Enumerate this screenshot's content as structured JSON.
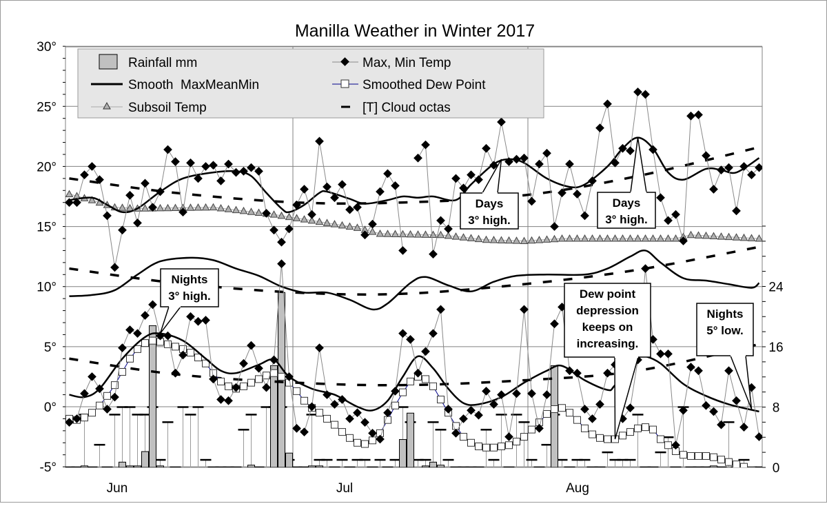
{
  "chart_data": {
    "type": "line",
    "title": "Manilla Weather in Winter 2017",
    "x_axis": {
      "month_labels": [
        "Jun",
        "Jul",
        "Aug"
      ],
      "range": [
        "Jun 1",
        "Aug 31"
      ]
    },
    "y_axis_left": {
      "unit": "°C",
      "range": [
        -5,
        30
      ],
      "tick_labels": [
        "30°",
        "25°",
        "20°",
        "15°",
        "10°",
        "5°",
        "0°",
        "-5°"
      ]
    },
    "y_axis_right": {
      "range": [
        0,
        32
      ],
      "tick_labels": [
        "24",
        "16",
        "8",
        "0"
      ]
    },
    "grid": "horizontal every 5°, vertical at month starts",
    "legend": {
      "placement": "top-left",
      "items": [
        "Rainfall mm",
        "Max, Min Temp",
        "Smooth  MaxMeanMin",
        "Smoothed Dew Point",
        "Subsoil Temp",
        "[T] Cloud octas"
      ]
    },
    "series": {
      "max_temp": {
        "name": "Max, Min Temp",
        "Jun": [
          17.0,
          17.0,
          19.3,
          20.0,
          18.9,
          15.9,
          11.6,
          14.7,
          17.6,
          15.3,
          18.6,
          16.6,
          17.9,
          21.4,
          20.4,
          16.2,
          20.3,
          19.0,
          20.0,
          20.1,
          18.8,
          20.2,
          19.5,
          19.6,
          19.9,
          19.6,
          16.1,
          14.7,
          13.7,
          14.8
        ],
        "Jul": [
          16.8,
          18.1,
          16.0,
          22.1,
          18.3,
          17.4,
          18.5,
          16.4,
          16.6,
          14.3,
          15.2,
          17.9,
          19.4,
          18.4,
          13.0,
          null,
          20.7,
          21.8,
          12.7,
          15.5,
          14.8,
          19.0,
          18.2,
          19.3,
          18.9,
          21.5,
          20.1,
          23.7,
          20.4,
          20.6,
          20.7
        ],
        "Aug": [
          17.1,
          20.2,
          21.1,
          15.0,
          17.8,
          20.2,
          17.7,
          15.9,
          18.8,
          23.2,
          25.2,
          20.3,
          21.5,
          21.3,
          26.2,
          26.0,
          21.4,
          17.4,
          15.5,
          16.0,
          13.8,
          24.2,
          24.3,
          20.9,
          18.1,
          19.7,
          19.9,
          16.3,
          20.0,
          19.3,
          19.9
        ]
      },
      "min_temp": {
        "name": "Max, Min Temp",
        "Jun": [
          -1.3,
          -1.0,
          1.1,
          2.5,
          1.5,
          -0.2,
          0.8,
          4.9,
          6.4,
          6.1,
          7.6,
          8.5,
          5.9,
          5.9,
          2.8,
          4.3,
          7.5,
          7.1,
          7.2,
          2.3,
          0.6,
          0.5,
          1.6,
          3.6,
          5.1,
          3.2,
          1.6,
          3.9,
          11.9,
          2.5
        ],
        "Jul": [
          -1.8,
          -2.1,
          0.0,
          4.9,
          1.0,
          0.2,
          0.6,
          -1.0,
          -0.5,
          -1.3,
          -2.2,
          -2.7,
          -0.5,
          1.3,
          6.1,
          5.6,
          2.8,
          4.6,
          6.1,
          8.1,
          -0.2,
          -2.2,
          -1.0,
          -0.3,
          -0.7,
          1.3,
          0.2,
          1.0,
          -2.5,
          1.1,
          8.1
        ],
        "Aug": [
          1.1,
          -1.8,
          1.0,
          6.9,
          8.3,
          3.0,
          2.8,
          -0.2,
          -1.0,
          0.2,
          2.8,
          3.5,
          -1.0,
          -0.1,
          3.9,
          11.5,
          5.6,
          4.4,
          4.4,
          -3.2,
          -0.3,
          3.3,
          3.0,
          0.1,
          -0.4,
          -1.5,
          3.0,
          0.5,
          -1.7,
          1.6,
          -2.5
        ]
      },
      "dew_point": {
        "name": "Smoothed Dew Point",
        "Jun": [
          -1.0,
          -1.1,
          -0.9,
          -0.5,
          0.1,
          0.9,
          1.8,
          2.9,
          4.0,
          4.8,
          5.3,
          5.5,
          5.4,
          5.2,
          5.0,
          4.8,
          4.5,
          4.1,
          3.6,
          2.8,
          2.1,
          1.7,
          1.5,
          1.7,
          2.0,
          2.3,
          2.6,
          2.8,
          2.5,
          2.0
        ],
        "Jul": [
          1.3,
          0.5,
          -0.1,
          -0.5,
          -1.0,
          -1.5,
          -2.1,
          -2.6,
          -3.0,
          -3.1,
          -2.8,
          -2.2,
          -1.1,
          0.1,
          1.2,
          2.1,
          2.5,
          2.3,
          1.7,
          0.6,
          -0.5,
          -1.6,
          -2.5,
          -3.0,
          -3.3,
          -3.4,
          -3.4,
          -3.3,
          -3.2,
          -2.9,
          -2.5
        ],
        "Aug": [
          -1.9,
          -1.3,
          -0.6,
          -0.2,
          -0.1,
          -0.5,
          -1.1,
          -1.8,
          -2.3,
          -2.6,
          -2.7,
          -2.7,
          -2.4,
          -2.1,
          -1.8,
          -1.7,
          -1.9,
          -2.7,
          -3.2,
          -3.7,
          -4.0,
          -4.1,
          -4.1,
          -4.1,
          -4.2,
          -4.4,
          -4.6,
          -4.8,
          -5.0,
          -5.3,
          -5.6
        ]
      },
      "smooth_max": [
        [
          "Jun 1",
          17.2
        ],
        [
          "Jun 4",
          17.4
        ],
        [
          "Jun 6",
          16.8
        ],
        [
          "Jun 8",
          16.2
        ],
        [
          "Jun 10",
          16.5
        ],
        [
          "Jun 13",
          17.9
        ],
        [
          "Jun 16",
          19.0
        ],
        [
          "Jun 20",
          19.5
        ],
        [
          "Jun 23",
          19.6
        ],
        [
          "Jun 25",
          19.2
        ],
        [
          "Jun 27",
          17.8
        ],
        [
          "Jun 29",
          16.5
        ],
        [
          "Jun 30",
          16.2
        ],
        [
          "Jul 2",
          16.8
        ],
        [
          "Jul 4",
          17.8
        ],
        [
          "Jul 5",
          17.9
        ],
        [
          "Jul 8",
          17.3
        ],
        [
          "Jul 10",
          16.9
        ],
        [
          "Jul 13",
          17.2
        ],
        [
          "Jul 15",
          17.5
        ],
        [
          "Jul 17",
          17.4
        ],
        [
          "Jul 19",
          17.5
        ],
        [
          "Jul 22",
          17.2
        ],
        [
          "Jul 24",
          18.5
        ],
        [
          "Jul 27",
          20.2
        ],
        [
          "Jul 29",
          20.6
        ],
        [
          "Jul 31",
          20.3
        ],
        [
          "Aug 3",
          19.0
        ],
        [
          "Aug 6",
          18.3
        ],
        [
          "Aug 8",
          18.5
        ],
        [
          "Aug 11",
          20.0
        ],
        [
          "Aug 13",
          21.5
        ],
        [
          "Aug 15",
          22.4
        ],
        [
          "Aug 17",
          21.5
        ],
        [
          "Aug 19",
          19.5
        ],
        [
          "Aug 21",
          18.9
        ],
        [
          "Aug 24",
          19.8
        ],
        [
          "Aug 26",
          19.7
        ],
        [
          "Aug 28",
          19.5
        ],
        [
          "Aug 31",
          20.7
        ]
      ],
      "smooth_mean": [
        [
          "Jun 1",
          9.2
        ],
        [
          "Jun 4",
          9.3
        ],
        [
          "Jun 7",
          9.7
        ],
        [
          "Jun 10",
          11.0
        ],
        [
          "Jun 13",
          12.1
        ],
        [
          "Jun 17",
          12.4
        ],
        [
          "Jun 20",
          12.2
        ],
        [
          "Jun 23",
          11.5
        ],
        [
          "Jun 26",
          10.9
        ],
        [
          "Jun 29",
          10.0
        ],
        [
          "Jul 2",
          9.5
        ],
        [
          "Jul 5",
          9.5
        ],
        [
          "Jul 8",
          8.9
        ],
        [
          "Jul 11",
          8.1
        ],
        [
          "Jul 13",
          8.6
        ],
        [
          "Jul 16",
          10.3
        ],
        [
          "Jul 18",
          10.8
        ],
        [
          "Jul 21",
          10.1
        ],
        [
          "Jul 24",
          9.6
        ],
        [
          "Jul 27",
          10.4
        ],
        [
          "Jul 30",
          10.9
        ],
        [
          "Aug 3",
          11.0
        ],
        [
          "Aug 8",
          11.0
        ],
        [
          "Aug 11",
          11.5
        ],
        [
          "Aug 14",
          12.5
        ],
        [
          "Aug 16",
          13.0
        ],
        [
          "Aug 18",
          12.0
        ],
        [
          "Aug 21",
          10.7
        ],
        [
          "Aug 24",
          10.5
        ],
        [
          "Aug 27",
          10.2
        ],
        [
          "Aug 30",
          9.9
        ],
        [
          "Aug 31",
          10.3
        ]
      ],
      "smooth_min": [
        [
          "Jun 1",
          1.0
        ],
        [
          "Jun 3",
          0.8
        ],
        [
          "Jun 5",
          1.5
        ],
        [
          "Jun 8",
          4.0
        ],
        [
          "Jun 11",
          5.8
        ],
        [
          "Jun 13",
          6.1
        ],
        [
          "Jun 16",
          5.5
        ],
        [
          "Jun 19",
          4.0
        ],
        [
          "Jun 21",
          3.0
        ],
        [
          "Jun 23",
          2.8
        ],
        [
          "Jun 26",
          3.5
        ],
        [
          "Jun 28",
          3.9
        ],
        [
          "Jun 30",
          2.5
        ],
        [
          "Jul 3",
          1.5
        ],
        [
          "Jul 6",
          1.0
        ],
        [
          "Jul 9",
          0.0
        ],
        [
          "Jul 11",
          -0.3
        ],
        [
          "Jul 13",
          0.5
        ],
        [
          "Jul 15",
          2.5
        ],
        [
          "Jul 17",
          4.2
        ],
        [
          "Jul 19",
          3.2
        ],
        [
          "Jul 21",
          1.5
        ],
        [
          "Jul 23",
          0.3
        ],
        [
          "Jul 25",
          0.2
        ],
        [
          "Jul 28",
          0.8
        ],
        [
          "Jul 31",
          2.0
        ],
        [
          "Aug 3",
          3.0
        ],
        [
          "Aug 5",
          3.4
        ],
        [
          "Aug 8",
          2.2
        ],
        [
          "Aug 11",
          1.4
        ],
        [
          "Aug 12",
          1.8
        ],
        [
          "Aug 15",
          4.1
        ],
        [
          "Aug 16",
          4.2
        ],
        [
          "Aug 18",
          3.6
        ],
        [
          "Aug 21",
          1.9
        ],
        [
          "Aug 24",
          0.9
        ],
        [
          "Aug 27",
          0.2
        ],
        [
          "Aug 31",
          -0.4
        ]
      ],
      "dashed_upper": [
        [
          "Jun 1",
          19.0
        ],
        [
          "Jun 15",
          17.8
        ],
        [
          "Jul 1",
          17.0
        ],
        [
          "Jul 15",
          17.0
        ],
        [
          "Jul 31",
          17.6
        ],
        [
          "Aug 15",
          19.2
        ],
        [
          "Aug 31",
          21.6
        ]
      ],
      "dashed_middle": [
        [
          "Jun 1",
          11.5
        ],
        [
          "Jun 15",
          10.3
        ],
        [
          "Jul 1",
          9.5
        ],
        [
          "Jul 15",
          9.4
        ],
        [
          "Jul 31",
          10.2
        ],
        [
          "Aug 15",
          11.4
        ],
        [
          "Aug 31",
          13.3
        ]
      ],
      "dashed_lower": [
        [
          "Jun 1",
          4.0
        ],
        [
          "Jun 15",
          2.7
        ],
        [
          "Jul 1",
          2.0
        ],
        [
          "Jul 15",
          1.8
        ],
        [
          "Jul 31",
          2.2
        ],
        [
          "Aug 15",
          3.0
        ],
        [
          "Aug 31",
          5.2
        ]
      ],
      "subsoil": {
        "name": "Subsoil Temp",
        "knots": [
          [
            "Jun 1",
            17.7
          ],
          [
            "Jun 4",
            17.2
          ],
          [
            "Jun 7",
            16.6
          ],
          [
            "Jun 10",
            16.5
          ],
          [
            "Jun 20",
            16.6
          ],
          [
            "Jun 28",
            16.0
          ],
          [
            "Jul 1",
            15.7
          ],
          [
            "Jul 5",
            15.3
          ],
          [
            "Jul 9",
            14.9
          ],
          [
            "Jul 12",
            14.4
          ],
          [
            "Jul 20",
            14.3
          ],
          [
            "Jul 26",
            13.9
          ],
          [
            "Jul 31",
            13.8
          ],
          [
            "Aug 5",
            14.0
          ],
          [
            "Aug 20",
            14.0
          ],
          [
            "Aug 22",
            14.3
          ],
          [
            "Aug 31",
            14.0
          ]
        ]
      },
      "rainfall_mm": {
        "name": "Rainfall mm",
        "values": [
          [
            "Jun 3",
            0.2
          ],
          [
            "Jun 8",
            0.7
          ],
          [
            "Jun 9",
            0.2
          ],
          [
            "Jun 10",
            0.2
          ],
          [
            "Jun 11",
            2.1
          ],
          [
            "Jun 12",
            18.8
          ],
          [
            "Jun 13",
            0.2
          ],
          [
            "Jun 25",
            0.3
          ],
          [
            "Jun 28",
            13.5
          ],
          [
            "Jun 29",
            23.2
          ],
          [
            "Jun 30",
            1.9
          ],
          [
            "Jul 3",
            0.2
          ],
          [
            "Jul 4",
            0.2
          ],
          [
            "Jul 15",
            3.7
          ],
          [
            "Jul 16",
            7.2
          ],
          [
            "Jul 18",
            0.2
          ],
          [
            "Jul 19",
            0.7
          ],
          [
            "Jul 20",
            0.3
          ],
          [
            "Aug 4",
            13.5
          ],
          [
            "Aug 25",
            0.2
          ]
        ]
      },
      "cloud_octas": {
        "name": "[T] Cloud octas",
        "Jun": [
          0,
          0,
          7,
          0,
          3,
          0,
          7,
          8,
          8,
          7,
          7,
          8,
          1,
          6,
          0,
          8,
          7,
          8,
          1,
          0,
          0,
          0,
          0,
          5,
          7,
          0,
          8,
          8,
          8,
          1
        ],
        "Jul": [
          0,
          0,
          7,
          1,
          1,
          0,
          1,
          0,
          1,
          1,
          0,
          1,
          0,
          1,
          8,
          6,
          1,
          1,
          6,
          5,
          1,
          0,
          0,
          0,
          0,
          5,
          1,
          7,
          0,
          7,
          6
        ],
        "Aug": [
          1,
          0,
          3,
          7,
          1,
          0,
          1,
          1,
          0,
          0,
          2,
          1,
          1,
          1,
          7,
          0,
          0,
          2,
          4,
          0,
          8,
          0,
          0,
          0,
          0,
          0,
          6,
          0,
          1,
          0,
          0
        ]
      }
    },
    "annotations": [
      {
        "id": "days1",
        "lines": [
          "Days",
          "3° high."
        ],
        "target": [
          "Jul 28",
          20.6
        ]
      },
      {
        "id": "days2",
        "lines": [
          "Days",
          "3° high."
        ],
        "target": [
          "Aug 15",
          22.4
        ]
      },
      {
        "id": "nights1",
        "lines": [
          "Nights",
          "3° high."
        ],
        "target": [
          "Jun 13",
          6.1
        ]
      },
      {
        "id": "dew",
        "lines": [
          "Dew point",
          "depression",
          "keeps on",
          "increasing."
        ],
        "target": [
          "Aug 12",
          -2.7
        ]
      },
      {
        "id": "nights2",
        "lines": [
          "Nights",
          "5° low."
        ],
        "target": [
          "Aug 30",
          -0.2
        ]
      }
    ],
    "colors": {
      "rain_fill": "#c0c0c0",
      "legend_bg": "#e6e6e6",
      "dew_line": "#00008b",
      "grid": "#808080",
      "subsoil_fill": "#b0b0b0"
    }
  }
}
